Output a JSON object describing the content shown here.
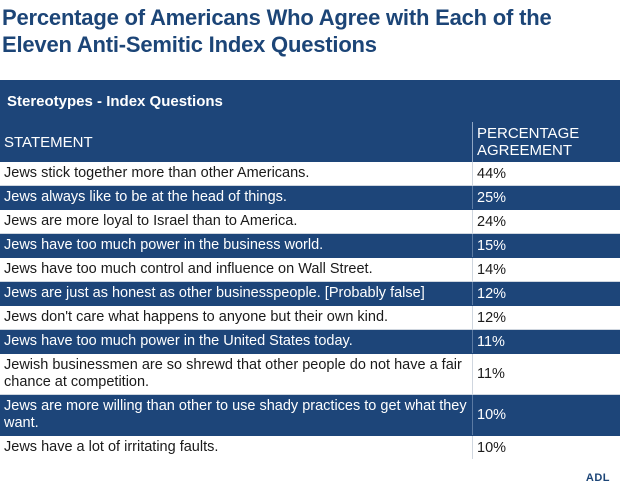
{
  "title": "Percentage of Americans Who Agree with Each of the Eleven Anti-Semitic Index Questions",
  "logo": "ADL",
  "chart_data": {
    "type": "table",
    "section": "Stereotypes - Index Questions",
    "columns": [
      "STATEMENT",
      "PERCENTAGE AGREEMENT"
    ],
    "rows": [
      {
        "statement": "Jews stick together more than other Americans.",
        "value": "44%"
      },
      {
        "statement": "Jews always like to be at the head of things.",
        "value": "25%"
      },
      {
        "statement": "Jews are more loyal to Israel than to America.",
        "value": "24%"
      },
      {
        "statement": "Jews have too much power in the business world.",
        "value": "15%"
      },
      {
        "statement": "Jews have too much control and influence on Wall Street.",
        "value": "14%"
      },
      {
        "statement": "Jews are just as honest as other businesspeople. [Probably false]",
        "value": "12%"
      },
      {
        "statement": "Jews don't care what happens to anyone but their own kind.",
        "value": "12%"
      },
      {
        "statement": "Jews have too much power in the United States today.",
        "value": "11%"
      },
      {
        "statement": "Jewish businessmen are so shrewd that other people do not have a fair chance at competition.",
        "value": "11%"
      },
      {
        "statement": "Jews are more willing than other to use shady practices to get what they want.",
        "value": "10%"
      },
      {
        "statement": "Jews have a lot of irritating faults.",
        "value": "10%"
      }
    ]
  }
}
